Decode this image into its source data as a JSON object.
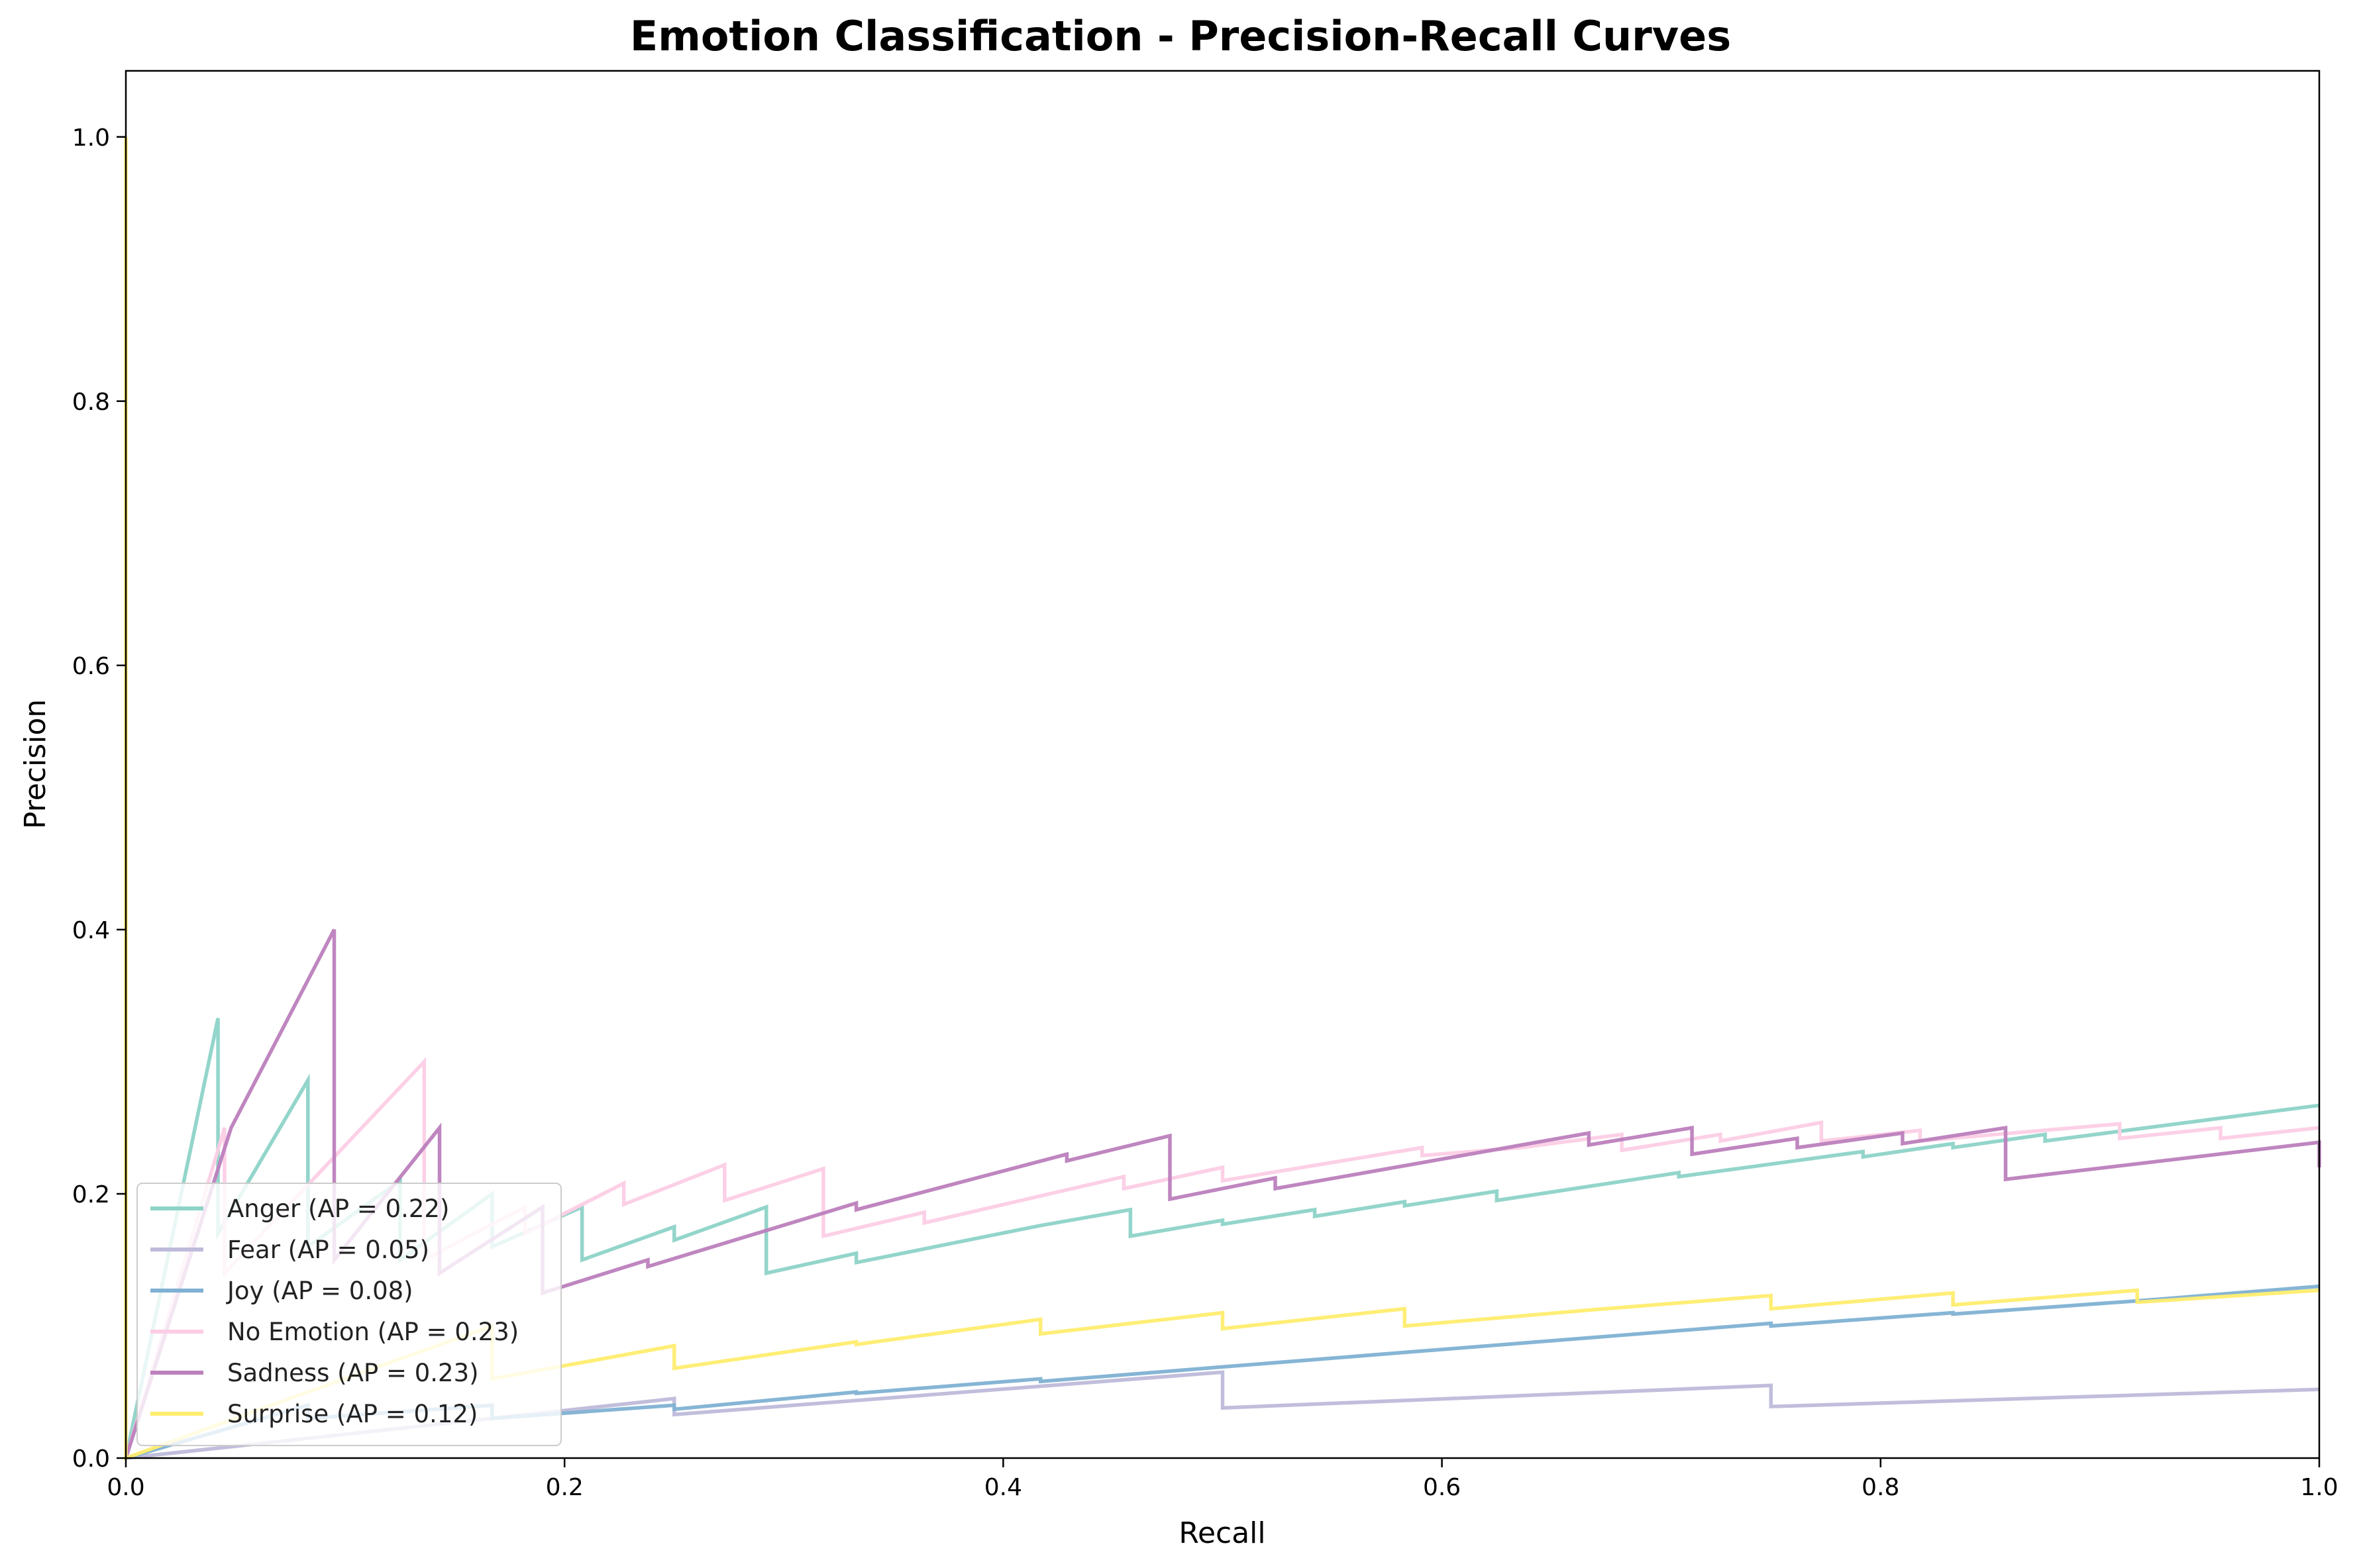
{
  "chart_data": {
    "type": "line",
    "title": "Emotion Classification - Precision-Recall Curves",
    "xlabel": "Recall",
    "ylabel": "Precision",
    "xlim": [
      0,
      1
    ],
    "ylim": [
      0,
      1.05
    ],
    "xticks": [
      "0.0",
      "0.2",
      "0.4",
      "0.6",
      "0.8",
      "1.0"
    ],
    "yticks": [
      "0.0",
      "0.2",
      "0.4",
      "0.6",
      "0.8",
      "1.0"
    ],
    "grid": false,
    "legend_position": "lower-left",
    "series": [
      {
        "name": "Anger (AP = 0.22)",
        "color": "#8dd3c7",
        "points": [
          [
            0,
            0
          ],
          [
            0.042,
            0.333
          ],
          [
            0.042,
            0.17
          ],
          [
            0.083,
            0.286
          ],
          [
            0.083,
            0.16
          ],
          [
            0.125,
            0.21
          ],
          [
            0.125,
            0.15
          ],
          [
            0.167,
            0.2
          ],
          [
            0.167,
            0.16
          ],
          [
            0.208,
            0.19
          ],
          [
            0.208,
            0.15
          ],
          [
            0.25,
            0.175
          ],
          [
            0.25,
            0.165
          ],
          [
            0.292,
            0.19
          ],
          [
            0.292,
            0.14
          ],
          [
            0.333,
            0.155
          ],
          [
            0.333,
            0.148
          ],
          [
            0.417,
            0.176
          ],
          [
            0.458,
            0.188
          ],
          [
            0.458,
            0.168
          ],
          [
            0.5,
            0.18
          ],
          [
            0.5,
            0.177
          ],
          [
            0.542,
            0.188
          ],
          [
            0.542,
            0.183
          ],
          [
            0.583,
            0.194
          ],
          [
            0.583,
            0.191
          ],
          [
            0.625,
            0.202
          ],
          [
            0.625,
            0.195
          ],
          [
            0.708,
            0.216
          ],
          [
            0.708,
            0.213
          ],
          [
            0.792,
            0.232
          ],
          [
            0.792,
            0.228
          ],
          [
            0.833,
            0.238
          ],
          [
            0.833,
            0.235
          ],
          [
            0.875,
            0.245
          ],
          [
            0.875,
            0.24
          ],
          [
            1.0,
            0.267
          ]
        ]
      },
      {
        "name": "Fear (AP = 0.05)",
        "color": "#bebada",
        "points": [
          [
            0,
            0
          ],
          [
            0.25,
            0.045
          ],
          [
            0.25,
            0.033
          ],
          [
            0.5,
            0.065
          ],
          [
            0.5,
            0.038
          ],
          [
            0.75,
            0.055
          ],
          [
            0.75,
            0.039
          ],
          [
            1.0,
            0.052
          ]
        ]
      },
      {
        "name": "Joy (AP = 0.08)",
        "color": "#80b1d3",
        "points": [
          [
            0,
            0
          ],
          [
            0.083,
            0.04
          ],
          [
            0.083,
            0.03
          ],
          [
            0.167,
            0.04
          ],
          [
            0.167,
            0.03
          ],
          [
            0.25,
            0.04
          ],
          [
            0.25,
            0.037
          ],
          [
            0.333,
            0.05
          ],
          [
            0.333,
            0.049
          ],
          [
            0.417,
            0.06
          ],
          [
            0.417,
            0.058
          ],
          [
            0.5,
            0.069
          ],
          [
            0.583,
            0.08
          ],
          [
            0.667,
            0.091
          ],
          [
            0.75,
            0.102
          ],
          [
            0.75,
            0.1
          ],
          [
            0.833,
            0.11
          ],
          [
            0.833,
            0.109
          ],
          [
            0.917,
            0.119
          ],
          [
            1.0,
            0.13
          ]
        ]
      },
      {
        "name": "No Emotion (AP = 0.23)",
        "color": "#fccde5",
        "points": [
          [
            0,
            0
          ],
          [
            0.045,
            0.25
          ],
          [
            0.045,
            0.14
          ],
          [
            0.136,
            0.3
          ],
          [
            0.136,
            0.15
          ],
          [
            0.182,
            0.19
          ],
          [
            0.182,
            0.17
          ],
          [
            0.227,
            0.208
          ],
          [
            0.227,
            0.192
          ],
          [
            0.273,
            0.222
          ],
          [
            0.273,
            0.195
          ],
          [
            0.318,
            0.219
          ],
          [
            0.318,
            0.168
          ],
          [
            0.364,
            0.186
          ],
          [
            0.364,
            0.178
          ],
          [
            0.455,
            0.213
          ],
          [
            0.455,
            0.204
          ],
          [
            0.5,
            0.22
          ],
          [
            0.5,
            0.21
          ],
          [
            0.591,
            0.235
          ],
          [
            0.591,
            0.229
          ],
          [
            0.636,
            0.235
          ],
          [
            0.682,
            0.245
          ],
          [
            0.682,
            0.233
          ],
          [
            0.727,
            0.245
          ],
          [
            0.727,
            0.24
          ],
          [
            0.773,
            0.254
          ],
          [
            0.773,
            0.24
          ],
          [
            0.818,
            0.248
          ],
          [
            0.818,
            0.24
          ],
          [
            0.909,
            0.253
          ],
          [
            0.909,
            0.242
          ],
          [
            0.955,
            0.25
          ],
          [
            0.955,
            0.242
          ],
          [
            1.0,
            0.25
          ]
        ]
      },
      {
        "name": "Sadness (AP = 0.23)",
        "color": "#bc80bd",
        "points": [
          [
            0,
            0
          ],
          [
            0.048,
            0.25
          ],
          [
            0.095,
            0.4
          ],
          [
            0.095,
            0.15
          ],
          [
            0.143,
            0.25
          ],
          [
            0.143,
            0.14
          ],
          [
            0.19,
            0.19
          ],
          [
            0.19,
            0.125
          ],
          [
            0.238,
            0.15
          ],
          [
            0.238,
            0.145
          ],
          [
            0.333,
            0.193
          ],
          [
            0.333,
            0.188
          ],
          [
            0.429,
            0.23
          ],
          [
            0.429,
            0.225
          ],
          [
            0.476,
            0.244
          ],
          [
            0.476,
            0.196
          ],
          [
            0.524,
            0.212
          ],
          [
            0.524,
            0.204
          ],
          [
            0.667,
            0.246
          ],
          [
            0.667,
            0.237
          ],
          [
            0.714,
            0.25
          ],
          [
            0.714,
            0.23
          ],
          [
            0.762,
            0.242
          ],
          [
            0.762,
            0.235
          ],
          [
            0.81,
            0.246
          ],
          [
            0.81,
            0.238
          ],
          [
            0.857,
            0.25
          ],
          [
            0.857,
            0.211
          ],
          [
            1.0,
            0.239
          ],
          [
            1.0,
            0.22
          ]
        ]
      },
      {
        "name": "Surprise (AP = 0.12)",
        "color": "#ffed6f",
        "points": [
          [
            0,
            1.0
          ],
          [
            0,
            0
          ],
          [
            0.083,
            0.05
          ],
          [
            0.167,
            0.1
          ],
          [
            0.167,
            0.06
          ],
          [
            0.25,
            0.085
          ],
          [
            0.25,
            0.068
          ],
          [
            0.333,
            0.088
          ],
          [
            0.333,
            0.086
          ],
          [
            0.417,
            0.105
          ],
          [
            0.417,
            0.094
          ],
          [
            0.5,
            0.11
          ],
          [
            0.5,
            0.098
          ],
          [
            0.583,
            0.113
          ],
          [
            0.583,
            0.1
          ],
          [
            0.667,
            0.112
          ],
          [
            0.75,
            0.123
          ],
          [
            0.75,
            0.113
          ],
          [
            0.833,
            0.125
          ],
          [
            0.833,
            0.116
          ],
          [
            0.917,
            0.127
          ],
          [
            0.917,
            0.118
          ],
          [
            1.0,
            0.127
          ]
        ]
      }
    ]
  }
}
